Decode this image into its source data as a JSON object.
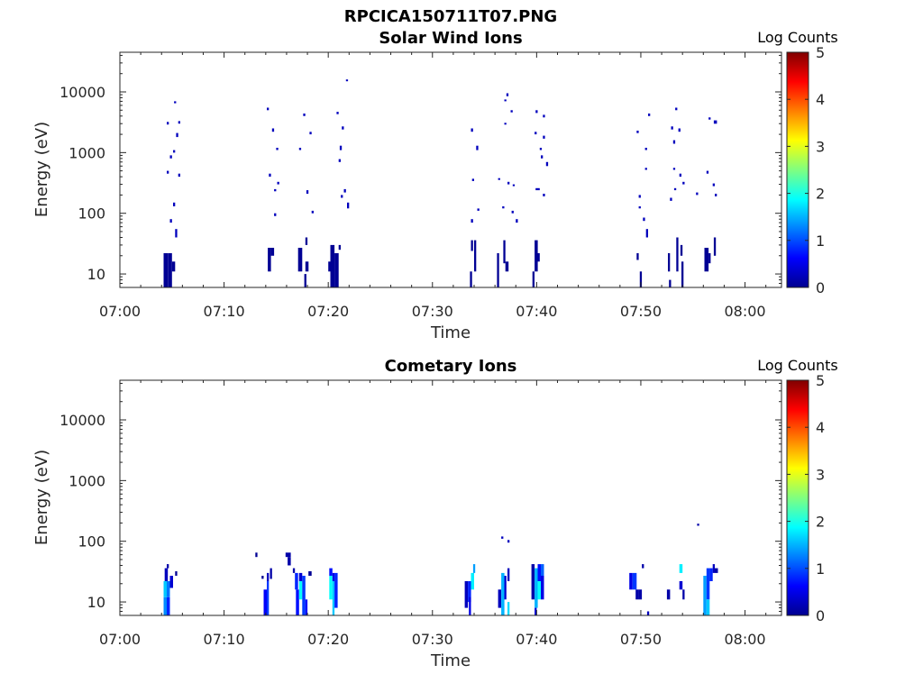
{
  "figure_title": "RPCICA150711T07.PNG",
  "chart_data": [
    {
      "type": "heatmap",
      "title": "Solar Wind Ions",
      "xlabel": "Time",
      "ylabel": "Energy (eV)",
      "x_ticks": [
        "07:00",
        "07:10",
        "07:20",
        "07:30",
        "07:40",
        "07:50",
        "08:00"
      ],
      "x_tick_minutes": [
        0,
        10,
        20,
        30,
        40,
        50,
        60
      ],
      "xlim_minutes": [
        0,
        63.5
      ],
      "y_scale": "log",
      "ylim": [
        6,
        45000
      ],
      "y_ticks": [
        "10",
        "100",
        "1000",
        "10000"
      ],
      "y_tick_values": [
        10,
        100,
        1000,
        10000
      ],
      "colorbar": {
        "label": "Log Counts",
        "ticks": [
          "0",
          "1",
          "2",
          "3",
          "4",
          "5"
        ],
        "range": [
          0,
          5
        ],
        "colormap": "jet"
      },
      "cells": [
        [
          4.2,
          4.6,
          6,
          22,
          0.1
        ],
        [
          4.6,
          5.0,
          6,
          22,
          0.1
        ],
        [
          5.0,
          5.3,
          11,
          16,
          0.1
        ],
        [
          4.8,
          5.0,
          70,
          80,
          0.3
        ],
        [
          5.3,
          5.5,
          40,
          55,
          0.3
        ],
        [
          5.6,
          5.8,
          400,
          450,
          0.3
        ],
        [
          4.5,
          4.7,
          450,
          500,
          0.3
        ],
        [
          4.8,
          5.0,
          800,
          900,
          0.3
        ],
        [
          5.1,
          5.3,
          1000,
          1100,
          0.3
        ],
        [
          5.4,
          5.6,
          1800,
          2100,
          0.3
        ],
        [
          4.5,
          4.7,
          2900,
          3200,
          0.3
        ],
        [
          5.2,
          5.4,
          6500,
          7000,
          0.3
        ],
        [
          5.6,
          5.8,
          3000,
          3300,
          0.3
        ],
        [
          5.1,
          5.3,
          130,
          150,
          0.3
        ],
        [
          14.2,
          14.5,
          11,
          27,
          0.1
        ],
        [
          14.5,
          14.8,
          20,
          27,
          0.1
        ],
        [
          17.1,
          17.5,
          11,
          27,
          0.1
        ],
        [
          17.8,
          18.1,
          11,
          16,
          0.1
        ],
        [
          17.7,
          17.9,
          6,
          10,
          0.1
        ],
        [
          17.8,
          18.0,
          30,
          40,
          0.1
        ],
        [
          14.1,
          14.3,
          5000,
          5500,
          0.3
        ],
        [
          14.6,
          14.8,
          2200,
          2500,
          0.3
        ],
        [
          15.0,
          15.2,
          1100,
          1200,
          0.3
        ],
        [
          14.3,
          14.5,
          400,
          450,
          0.3
        ],
        [
          14.8,
          15.0,
          230,
          250,
          0.3
        ],
        [
          15.1,
          15.3,
          300,
          330,
          0.3
        ],
        [
          14.8,
          15.0,
          90,
          100,
          0.3
        ],
        [
          17.6,
          17.8,
          4000,
          4400,
          0.3
        ],
        [
          17.2,
          17.4,
          1100,
          1200,
          0.3
        ],
        [
          17.9,
          18.1,
          210,
          240,
          0.3
        ],
        [
          18.4,
          18.6,
          100,
          110,
          0.3
        ],
        [
          18.2,
          18.4,
          2000,
          2200,
          0.3
        ],
        [
          20.2,
          20.6,
          6,
          30,
          0.1
        ],
        [
          20.6,
          21.0,
          6,
          22,
          0.1
        ],
        [
          20.0,
          20.2,
          11,
          16,
          0.1
        ],
        [
          21.0,
          21.2,
          25,
          30,
          0.1
        ],
        [
          21.7,
          21.9,
          15000,
          16000,
          0.3
        ],
        [
          21.3,
          21.5,
          2400,
          2700,
          0.3
        ],
        [
          20.8,
          21.0,
          4300,
          4700,
          0.3
        ],
        [
          21.1,
          21.3,
          1100,
          1300,
          0.3
        ],
        [
          21.0,
          21.2,
          700,
          780,
          0.3
        ],
        [
          21.5,
          21.7,
          220,
          250,
          0.3
        ],
        [
          21.8,
          22.0,
          120,
          150,
          0.3
        ],
        [
          21.2,
          21.4,
          180,
          200,
          0.3
        ],
        [
          33.6,
          33.8,
          6,
          11,
          0.1
        ],
        [
          33.7,
          33.9,
          24,
          36,
          0.1
        ],
        [
          34.0,
          34.2,
          11,
          36,
          0.1
        ],
        [
          33.7,
          33.9,
          2200,
          2500,
          0.3
        ],
        [
          34.2,
          34.4,
          1100,
          1300,
          0.3
        ],
        [
          33.8,
          34.0,
          340,
          370,
          0.3
        ],
        [
          33.7,
          33.9,
          70,
          80,
          0.3
        ],
        [
          34.3,
          34.5,
          110,
          120,
          0.3
        ],
        [
          36.2,
          36.4,
          6,
          22,
          0.1
        ],
        [
          36.8,
          37.0,
          15,
          36,
          0.1
        ],
        [
          37.0,
          37.3,
          11,
          16,
          0.1
        ],
        [
          37.1,
          37.3,
          8500,
          9500,
          0.3
        ],
        [
          36.9,
          37.1,
          7000,
          7500,
          0.3
        ],
        [
          36.9,
          37.1,
          2900,
          3100,
          0.3
        ],
        [
          37.5,
          37.7,
          4600,
          5000,
          0.3
        ],
        [
          36.7,
          36.9,
          120,
          130,
          0.3
        ],
        [
          37.2,
          37.4,
          300,
          330,
          0.3
        ],
        [
          37.7,
          37.9,
          280,
          300,
          0.3
        ],
        [
          37.6,
          37.8,
          100,
          110,
          0.3
        ],
        [
          36.3,
          36.5,
          360,
          380,
          0.3
        ],
        [
          38.0,
          38.2,
          70,
          80,
          0.3
        ],
        [
          39.8,
          40.1,
          11,
          36,
          0.1
        ],
        [
          40.1,
          40.3,
          16,
          22,
          0.1
        ],
        [
          39.6,
          39.8,
          6,
          11,
          0.1
        ],
        [
          39.9,
          40.1,
          4500,
          5000,
          0.3
        ],
        [
          40.6,
          40.8,
          3800,
          4200,
          0.3
        ],
        [
          39.8,
          40.0,
          2000,
          2200,
          0.3
        ],
        [
          40.6,
          40.8,
          1700,
          1900,
          0.3
        ],
        [
          40.4,
          40.6,
          800,
          900,
          0.3
        ],
        [
          40.9,
          41.1,
          600,
          700,
          0.3
        ],
        [
          39.9,
          40.3,
          240,
          260,
          0.3
        ],
        [
          40.6,
          40.8,
          190,
          210,
          0.3
        ],
        [
          40.3,
          40.5,
          1100,
          1200,
          0.3
        ],
        [
          49.6,
          49.8,
          17,
          22,
          0.1
        ],
        [
          49.9,
          50.1,
          6,
          11,
          0.1
        ],
        [
          49.8,
          50.0,
          180,
          200,
          0.3
        ],
        [
          49.6,
          49.8,
          2100,
          2300,
          0.3
        ],
        [
          50.7,
          50.9,
          4000,
          4400,
          0.3
        ],
        [
          50.4,
          50.6,
          1100,
          1200,
          0.3
        ],
        [
          50.4,
          50.6,
          520,
          560,
          0.3
        ],
        [
          49.8,
          50.0,
          120,
          130,
          0.3
        ],
        [
          50.2,
          50.4,
          75,
          85,
          0.3
        ],
        [
          50.5,
          50.7,
          40,
          55,
          0.3
        ],
        [
          52.6,
          52.8,
          11,
          22,
          0.1
        ],
        [
          52.7,
          52.9,
          6,
          8,
          0.1
        ],
        [
          53.4,
          53.6,
          11,
          40,
          0.1
        ],
        [
          53.8,
          54.0,
          20,
          30,
          0.1
        ],
        [
          53.9,
          54.1,
          6,
          16,
          0.1
        ],
        [
          53.3,
          53.5,
          5000,
          5500,
          0.3
        ],
        [
          52.9,
          53.1,
          2400,
          2700,
          0.3
        ],
        [
          53.1,
          53.3,
          1400,
          1600,
          0.3
        ],
        [
          53.6,
          53.8,
          2200,
          2500,
          0.3
        ],
        [
          53.1,
          53.3,
          520,
          560,
          0.3
        ],
        [
          53.7,
          53.9,
          400,
          450,
          0.3
        ],
        [
          53.2,
          53.4,
          240,
          260,
          0.3
        ],
        [
          52.8,
          53.0,
          160,
          180,
          0.3
        ],
        [
          54.0,
          54.2,
          300,
          330,
          0.3
        ],
        [
          55.3,
          55.5,
          200,
          220,
          0.3
        ],
        [
          56.1,
          56.5,
          11,
          27,
          0.1
        ],
        [
          56.5,
          56.7,
          15,
          22,
          0.1
        ],
        [
          57.0,
          57.2,
          20,
          40,
          0.1
        ],
        [
          56.3,
          56.5,
          450,
          500,
          0.3
        ],
        [
          56.5,
          56.7,
          3500,
          3800,
          0.3
        ],
        [
          57.0,
          57.3,
          3000,
          3400,
          0.3
        ],
        [
          56.9,
          57.1,
          280,
          310,
          0.3
        ],
        [
          57.1,
          57.3,
          190,
          210,
          0.3
        ]
      ]
    },
    {
      "type": "heatmap",
      "title": "Cometary Ions",
      "xlabel": "Time",
      "ylabel": "Energy (eV)",
      "x_ticks": [
        "07:00",
        "07:10",
        "07:20",
        "07:30",
        "07:40",
        "07:50",
        "08:00"
      ],
      "x_tick_minutes": [
        0,
        10,
        20,
        30,
        40,
        50,
        60
      ],
      "xlim_minutes": [
        0,
        63.5
      ],
      "y_scale": "log",
      "ylim": [
        6,
        45000
      ],
      "y_ticks": [
        "10",
        "100",
        "1000",
        "10000"
      ],
      "y_tick_values": [
        10,
        100,
        1000,
        10000
      ],
      "colorbar": {
        "label": "Log Counts",
        "ticks": [
          "0",
          "1",
          "2",
          "3",
          "4",
          "5"
        ],
        "range": [
          0,
          5
        ],
        "colormap": "jet"
      },
      "cells": [
        [
          4.2,
          4.5,
          6,
          12,
          1.3
        ],
        [
          4.2,
          4.5,
          12,
          22,
          1.6
        ],
        [
          4.5,
          4.8,
          6,
          12,
          0.8
        ],
        [
          4.5,
          4.8,
          12,
          22,
          1.2
        ],
        [
          4.8,
          5.1,
          17,
          27,
          0.4
        ],
        [
          4.3,
          4.6,
          22,
          36,
          0.3
        ],
        [
          4.5,
          4.7,
          36,
          42,
          0.2
        ],
        [
          5.3,
          5.5,
          27,
          32,
          0.1
        ],
        [
          13.0,
          13.2,
          55,
          65,
          0.1
        ],
        [
          13.8,
          14.1,
          6,
          16,
          0.6
        ],
        [
          14.1,
          14.3,
          6,
          22,
          0.9
        ],
        [
          14.1,
          14.3,
          22,
          30,
          0.3
        ],
        [
          14.4,
          14.6,
          24,
          36,
          0.2
        ],
        [
          13.6,
          13.8,
          24,
          27,
          0.1
        ],
        [
          15.9,
          16.4,
          55,
          65,
          0.2
        ],
        [
          16.1,
          16.4,
          40,
          55,
          0.2
        ],
        [
          16.6,
          16.8,
          30,
          36,
          0.2
        ],
        [
          16.8,
          17.1,
          16,
          30,
          0.8
        ],
        [
          16.9,
          17.2,
          6,
          16,
          0.7
        ],
        [
          17.2,
          17.5,
          11,
          22,
          1.9
        ],
        [
          17.2,
          17.5,
          22,
          30,
          0.4
        ],
        [
          17.5,
          17.8,
          6,
          27,
          0.9
        ],
        [
          17.8,
          18.0,
          6,
          11,
          0.6
        ],
        [
          18.1,
          18.4,
          27,
          32,
          0.1
        ],
        [
          20.1,
          20.4,
          11,
          27,
          1.9
        ],
        [
          20.4,
          20.6,
          6,
          22,
          1.6
        ],
        [
          20.1,
          20.4,
          27,
          36,
          0.7
        ],
        [
          20.6,
          20.9,
          8,
          30,
          0.8
        ],
        [
          20.4,
          20.6,
          22,
          30,
          0.5
        ],
        [
          33.1,
          33.4,
          8,
          22,
          0.3
        ],
        [
          33.4,
          33.7,
          10,
          22,
          0.8
        ],
        [
          33.7,
          34.0,
          16,
          30,
          1.8
        ],
        [
          33.9,
          34.1,
          30,
          42,
          1.4
        ],
        [
          33.5,
          33.7,
          6,
          12,
          0.5
        ],
        [
          36.3,
          36.6,
          8,
          16,
          0.3
        ],
        [
          36.6,
          36.9,
          6,
          30,
          1.5
        ],
        [
          36.9,
          37.1,
          11,
          27,
          0.4
        ],
        [
          37.2,
          37.4,
          6,
          10,
          1.7
        ],
        [
          37.2,
          37.4,
          22,
          36,
          0.3
        ],
        [
          36.6,
          36.8,
          110,
          120,
          0.3
        ],
        [
          37.2,
          37.4,
          95,
          105,
          0.3
        ],
        [
          39.5,
          39.8,
          11,
          42,
          0.2
        ],
        [
          39.8,
          40.1,
          8,
          36,
          1.5
        ],
        [
          40.1,
          40.4,
          22,
          42,
          0.7
        ],
        [
          40.1,
          40.4,
          11,
          22,
          1.9
        ],
        [
          40.4,
          40.7,
          27,
          42,
          1.1
        ],
        [
          40.4,
          40.7,
          11,
          27,
          0.5
        ],
        [
          39.8,
          40.0,
          6,
          8,
          0.4
        ],
        [
          48.9,
          49.2,
          16,
          30,
          0.5
        ],
        [
          49.2,
          49.6,
          16,
          30,
          0.9
        ],
        [
          49.5,
          49.8,
          11,
          16,
          0.2
        ],
        [
          49.8,
          50.1,
          11,
          16,
          0.2
        ],
        [
          50.1,
          50.3,
          36,
          42,
          0.2
        ],
        [
          50.6,
          50.8,
          6,
          7,
          0.3
        ],
        [
          52.5,
          52.8,
          11,
          16,
          0.2
        ],
        [
          53.7,
          54.0,
          30,
          42,
          1.8
        ],
        [
          53.7,
          54.0,
          16,
          22,
          0.4
        ],
        [
          54.0,
          54.2,
          11,
          16,
          0.2
        ],
        [
          55.4,
          55.6,
          180,
          195,
          0.2
        ],
        [
          56.0,
          56.3,
          6,
          27,
          1.4
        ],
        [
          56.3,
          56.6,
          11,
          36,
          0.9
        ],
        [
          56.6,
          56.9,
          22,
          36,
          0.8
        ],
        [
          56.9,
          57.1,
          30,
          42,
          0.3
        ],
        [
          57.1,
          57.4,
          30,
          36,
          0.2
        ],
        [
          56.3,
          56.6,
          6,
          11,
          1.6
        ]
      ]
    }
  ]
}
